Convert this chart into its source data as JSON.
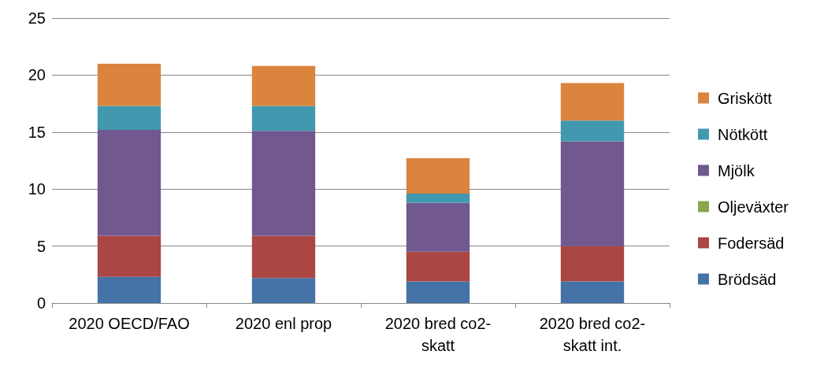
{
  "chart_data": {
    "type": "bar",
    "stacked": true,
    "categories": [
      "2020 OECD/FAO",
      "2020 enl prop",
      "2020 bred co2-\nskatt",
      "2020 bred co2-\nskatt int."
    ],
    "series": [
      {
        "name": "Brödsäd",
        "color": "#4572a7",
        "values": [
          2.3,
          2.2,
          1.9,
          1.9
        ]
      },
      {
        "name": "Fodersäd",
        "color": "#aa4643",
        "values": [
          3.6,
          3.7,
          2.6,
          3.1
        ]
      },
      {
        "name": "Oljeväxter",
        "color": "#89a54e",
        "values": [
          0,
          0,
          0,
          0
        ]
      },
      {
        "name": "Mjölk",
        "color": "#71588f",
        "values": [
          9.3,
          9.2,
          4.3,
          9.2
        ]
      },
      {
        "name": "Nötkött",
        "color": "#4198af",
        "values": [
          2.1,
          2.2,
          0.8,
          1.8
        ]
      },
      {
        "name": "Griskött",
        "color": "#db843d",
        "values": [
          3.7,
          3.5,
          3.1,
          3.3
        ]
      }
    ],
    "ylim": [
      0,
      25
    ],
    "yticks": [
      0,
      5,
      10,
      15,
      20,
      25
    ],
    "grid": "y",
    "legend": "right"
  }
}
